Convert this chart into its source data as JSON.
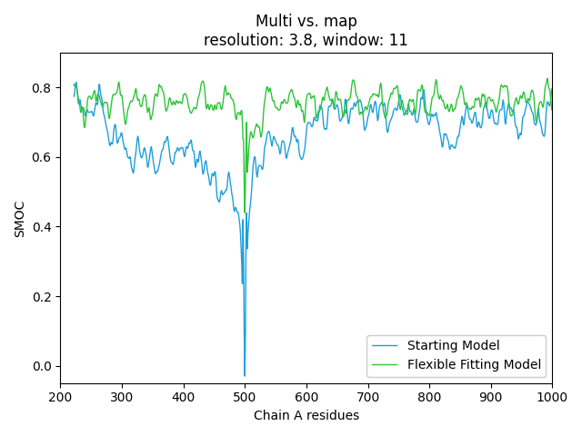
{
  "title_line1": "Multi vs. map",
  "title_line2": "resolution: 3.8, window: 11",
  "xlabel": "Chain A residues",
  "ylabel": "SMOC",
  "xlim": [
    200,
    1000
  ],
  "ylim": [
    -0.05,
    0.9
  ],
  "color_starting": "#1f9fdb",
  "color_flexible": "#2dc53a",
  "legend_labels": [
    "Starting Model",
    "Flexible Fitting Model"
  ],
  "legend_loc": "lower right",
  "figsize": [
    6.4,
    4.8
  ],
  "dpi": 100,
  "seed": 17
}
